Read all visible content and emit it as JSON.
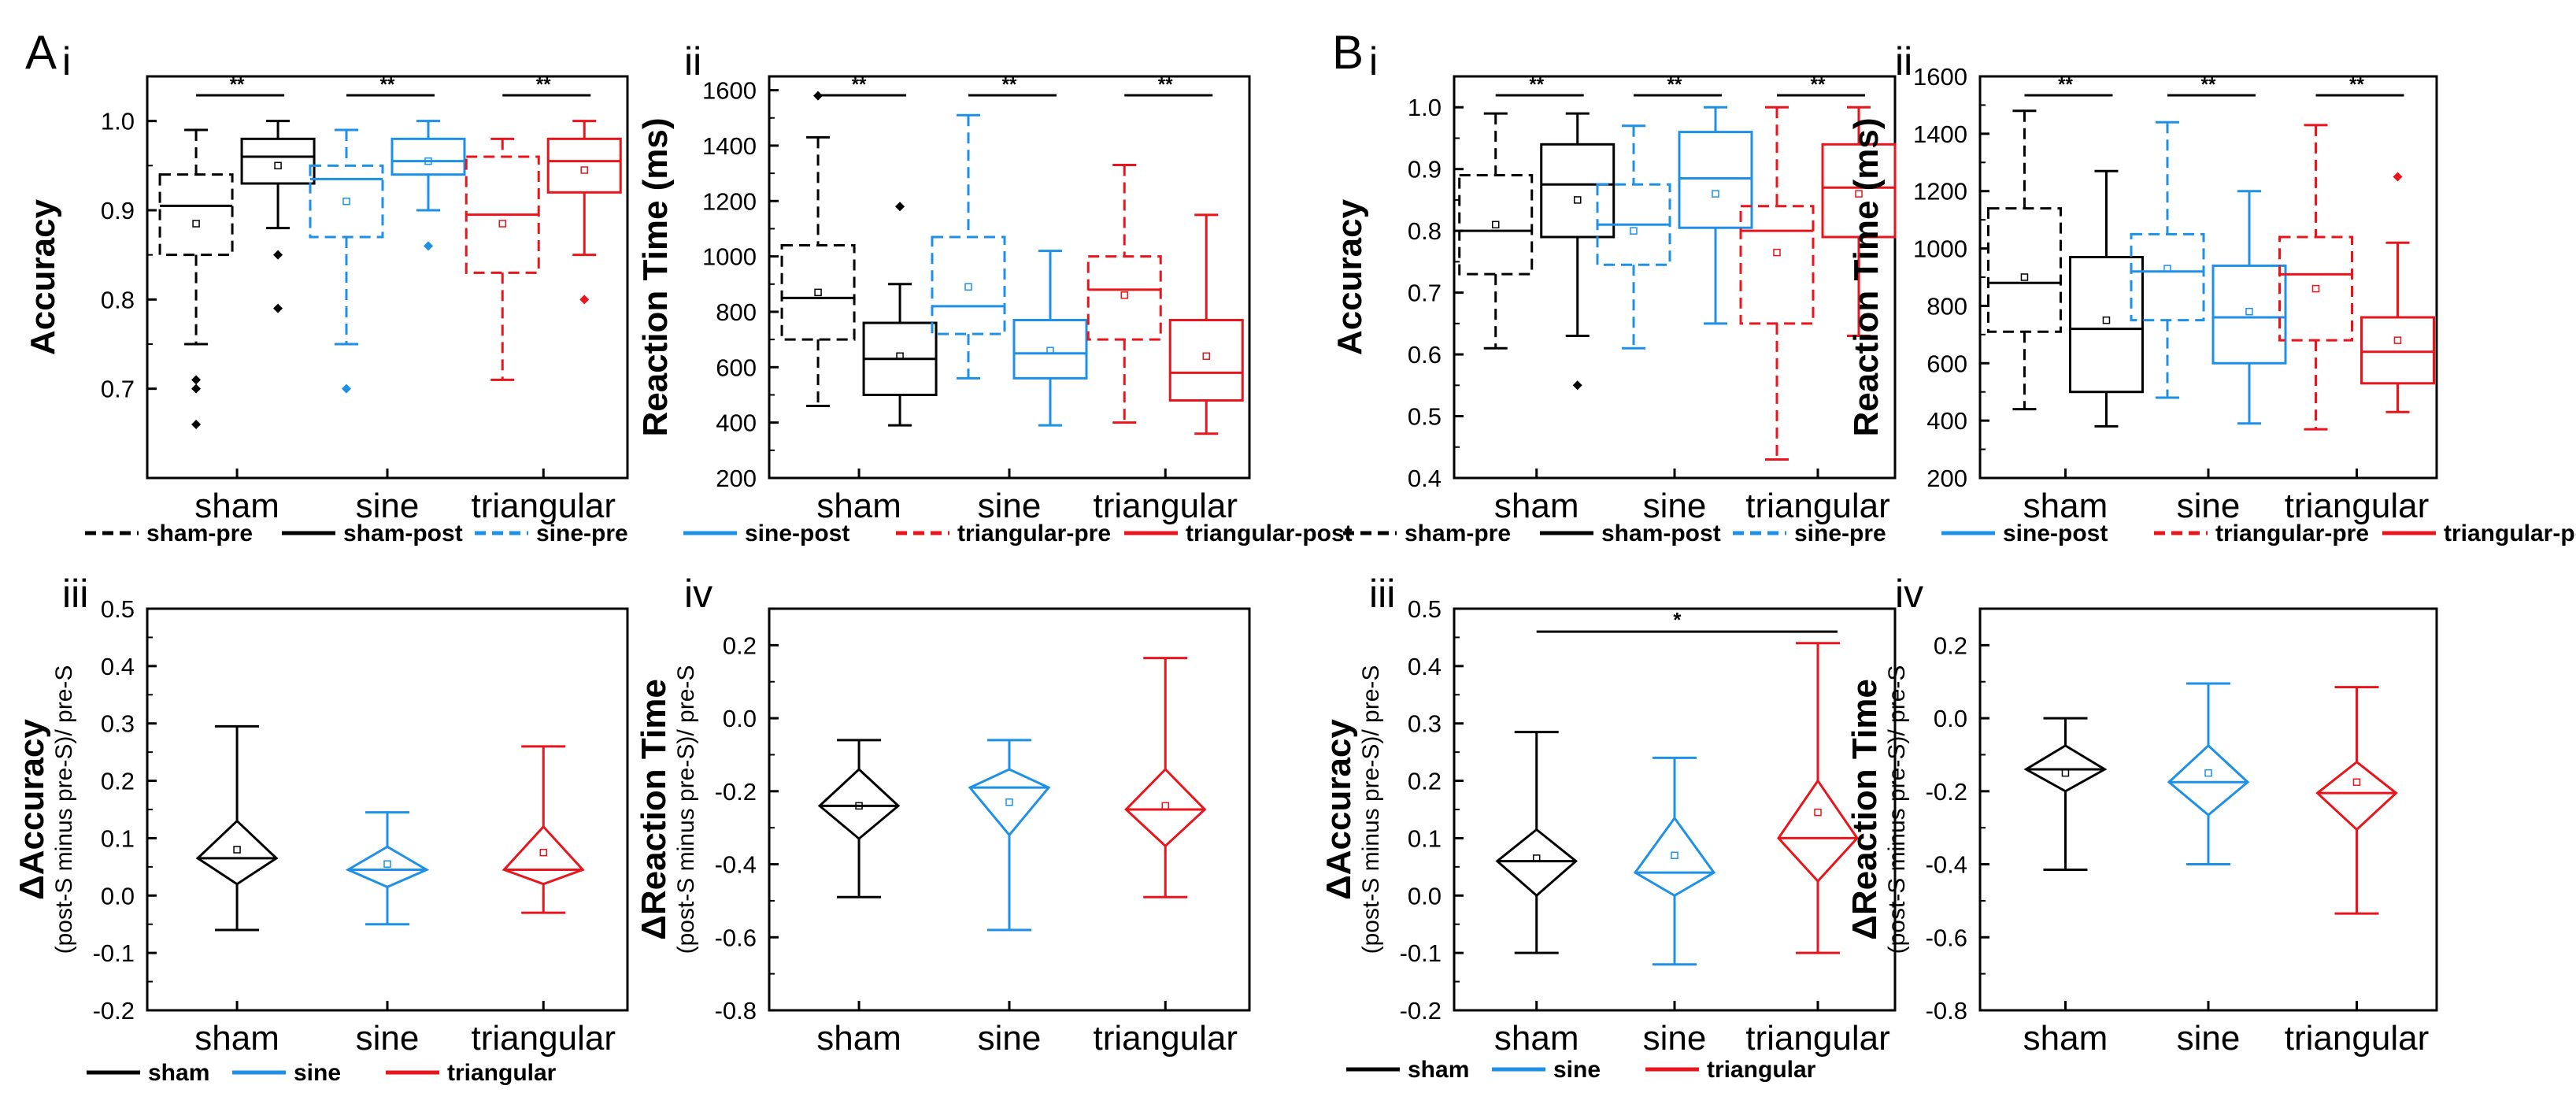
{
  "chart_data": {
    "type": "box",
    "panels": [
      {
        "id": "A",
        "letter": "A",
        "sub": "i",
        "title": "",
        "ylabel": "Accuracy",
        "ylim": [
          0.6,
          1.05
        ],
        "yticks": [
          "1.0",
          "0.9",
          "0.8",
          "0.7"
        ],
        "ytick_values": [
          1.0,
          0.9,
          0.8,
          0.7
        ],
        "categories": [
          "sham",
          "sine",
          "triangular"
        ],
        "groups": [
          {
            "pre": {
              "min": 0.75,
              "q1": 0.85,
              "median": 0.905,
              "q3": 0.94,
              "max": 0.99,
              "mean": 0.885,
              "outliers": [
                0.71,
                0.7,
                0.66
              ]
            },
            "post": {
              "min": 0.88,
              "q1": 0.93,
              "median": 0.96,
              "q3": 0.98,
              "max": 1.0,
              "mean": 0.95,
              "outliers": [
                0.85,
                0.79
              ]
            }
          },
          {
            "pre": {
              "min": 0.75,
              "q1": 0.87,
              "median": 0.935,
              "q3": 0.95,
              "max": 0.99,
              "mean": 0.91,
              "outliers": [
                0.7
              ]
            },
            "post": {
              "min": 0.9,
              "q1": 0.94,
              "median": 0.955,
              "q3": 0.98,
              "max": 1.0,
              "mean": 0.955,
              "outliers": [
                0.86
              ]
            }
          },
          {
            "pre": {
              "min": 0.71,
              "q1": 0.83,
              "median": 0.895,
              "q3": 0.96,
              "max": 0.98,
              "mean": 0.885,
              "outliers": []
            },
            "post": {
              "min": 0.85,
              "q1": 0.92,
              "median": 0.955,
              "q3": 0.98,
              "max": 1.0,
              "mean": 0.945,
              "outliers": [
                0.8
              ]
            }
          }
        ],
        "significance": [
          "**",
          "**",
          "**"
        ]
      },
      {
        "id": "B",
        "letter": "",
        "sub": "ii",
        "title": "",
        "ylabel": "Reaction Time (ms)",
        "ylim": [
          200,
          1650
        ],
        "yticks": [
          "1600",
          "1400",
          "1200",
          "1000",
          "800",
          "600",
          "400",
          "200"
        ],
        "ytick_values": [
          1600,
          1400,
          1200,
          1000,
          800,
          600,
          400,
          200
        ],
        "categories": [
          "sham",
          "sine",
          "triangular"
        ],
        "groups": [
          {
            "pre": {
              "min": 460,
              "q1": 700,
              "median": 850,
              "q3": 1040,
              "max": 1430,
              "mean": 870,
              "outliers": [
                1580
              ]
            },
            "post": {
              "min": 390,
              "q1": 500,
              "median": 630,
              "q3": 760,
              "max": 900,
              "mean": 640,
              "outliers": [
                1180
              ]
            }
          },
          {
            "pre": {
              "min": 560,
              "q1": 720,
              "median": 820,
              "q3": 1070,
              "max": 1510,
              "mean": 890,
              "outliers": []
            },
            "post": {
              "min": 390,
              "q1": 560,
              "median": 650,
              "q3": 770,
              "max": 1020,
              "mean": 660,
              "outliers": []
            }
          },
          {
            "pre": {
              "min": 400,
              "q1": 700,
              "median": 880,
              "q3": 1000,
              "max": 1330,
              "mean": 860,
              "outliers": []
            },
            "post": {
              "min": 360,
              "q1": 480,
              "median": 580,
              "q3": 770,
              "max": 1150,
              "mean": 640,
              "outliers": []
            }
          }
        ],
        "significance": [
          "**",
          "**",
          "**"
        ]
      },
      {
        "id": "C",
        "letter": "B",
        "sub": "i",
        "title": "",
        "ylabel": "Accuracy",
        "ylim": [
          0.4,
          1.05
        ],
        "yticks": [
          "1.0",
          "0.9",
          "0.8",
          "0.7",
          "0.6",
          "0.5",
          "0.4"
        ],
        "ytick_values": [
          1.0,
          0.9,
          0.8,
          0.7,
          0.6,
          0.5,
          0.4
        ],
        "categories": [
          "sham",
          "sine",
          "triangular"
        ],
        "groups": [
          {
            "pre": {
              "min": 0.61,
              "q1": 0.73,
              "median": 0.8,
              "q3": 0.89,
              "max": 0.99,
              "mean": 0.81,
              "outliers": []
            },
            "post": {
              "min": 0.63,
              "q1": 0.79,
              "median": 0.875,
              "q3": 0.94,
              "max": 0.99,
              "mean": 0.85,
              "outliers": [
                0.55
              ]
            }
          },
          {
            "pre": {
              "min": 0.61,
              "q1": 0.745,
              "median": 0.81,
              "q3": 0.875,
              "max": 0.97,
              "mean": 0.8,
              "outliers": []
            },
            "post": {
              "min": 0.65,
              "q1": 0.805,
              "median": 0.885,
              "q3": 0.96,
              "max": 1.0,
              "mean": 0.86,
              "outliers": []
            }
          },
          {
            "pre": {
              "min": 0.43,
              "q1": 0.65,
              "median": 0.8,
              "q3": 0.84,
              "max": 1.0,
              "mean": 0.765,
              "outliers": []
            },
            "post": {
              "min": 0.63,
              "q1": 0.79,
              "median": 0.87,
              "q3": 0.94,
              "max": 1.0,
              "mean": 0.86,
              "outliers": []
            }
          }
        ],
        "significance": [
          "**",
          "**",
          "**"
        ]
      },
      {
        "id": "D",
        "letter": "",
        "sub": "ii",
        "title": "",
        "ylabel": "Reaction Time (ms)",
        "ylim": [
          200,
          1600
        ],
        "yticks": [
          "1600",
          "1400",
          "1200",
          "1000",
          "800",
          "600",
          "400",
          "200"
        ],
        "ytick_values": [
          1600,
          1400,
          1200,
          1000,
          800,
          600,
          400,
          200
        ],
        "categories": [
          "sham",
          "sine",
          "triangular"
        ],
        "groups": [
          {
            "pre": {
              "min": 440,
              "q1": 710,
              "median": 880,
              "q3": 1140,
              "max": 1480,
              "mean": 900,
              "outliers": []
            },
            "post": {
              "min": 380,
              "q1": 500,
              "median": 720,
              "q3": 970,
              "max": 1270,
              "mean": 750,
              "outliers": []
            }
          },
          {
            "pre": {
              "min": 480,
              "q1": 750,
              "median": 920,
              "q3": 1050,
              "max": 1440,
              "mean": 930,
              "outliers": []
            },
            "post": {
              "min": 390,
              "q1": 600,
              "median": 760,
              "q3": 940,
              "max": 1200,
              "mean": 780,
              "outliers": []
            }
          },
          {
            "pre": {
              "min": 370,
              "q1": 680,
              "median": 910,
              "q3": 1040,
              "max": 1430,
              "mean": 860,
              "outliers": []
            },
            "post": {
              "min": 430,
              "q1": 530,
              "median": 640,
              "q3": 760,
              "max": 1020,
              "mean": 680,
              "outliers": [
                1250
              ]
            }
          }
        ],
        "significance": [
          "**",
          "**",
          "**"
        ]
      },
      {
        "id": "E",
        "letter": "",
        "sub": "iii",
        "ylabel": "ΔAccuracy",
        "ylabel2": "(post-S minus pre-S)/ pre-S",
        "ylim": [
          -0.2,
          0.5
        ],
        "yticks": [
          "0.5",
          "0.4",
          "0.3",
          "0.2",
          "0.1",
          "0.0",
          "-0.1",
          "-0.2"
        ],
        "ytick_values": [
          0.5,
          0.4,
          0.3,
          0.2,
          0.1,
          0.0,
          -0.1,
          -0.2
        ],
        "categories": [
          "sham",
          "sine",
          "triangular"
        ],
        "diamonds": [
          {
            "min": -0.06,
            "q1": 0.02,
            "median": 0.065,
            "q3": 0.13,
            "max": 0.295,
            "mean": 0.08
          },
          {
            "min": -0.05,
            "q1": 0.015,
            "median": 0.045,
            "q3": 0.085,
            "max": 0.145,
            "mean": 0.055
          },
          {
            "min": -0.03,
            "q1": 0.02,
            "median": 0.045,
            "q3": 0.12,
            "max": 0.26,
            "mean": 0.075
          }
        ],
        "significance": []
      },
      {
        "id": "F",
        "letter": "",
        "sub": "iv",
        "ylabel": "ΔReaction Time",
        "ylabel2": "(post-S minus pre-S)/ pre-S",
        "ylim": [
          -0.8,
          0.3
        ],
        "yticks": [
          "0.2",
          "0.0",
          "-0.2",
          "-0.4",
          "-0.6",
          "-0.8"
        ],
        "ytick_values": [
          0.2,
          0.0,
          -0.2,
          -0.4,
          -0.6,
          -0.8
        ],
        "categories": [
          "sham",
          "sine",
          "triangular"
        ],
        "diamonds": [
          {
            "min": -0.49,
            "q1": -0.33,
            "median": -0.24,
            "q3": -0.14,
            "max": -0.06,
            "mean": -0.24
          },
          {
            "min": -0.58,
            "q1": -0.32,
            "median": -0.19,
            "q3": -0.14,
            "max": -0.06,
            "mean": -0.23
          },
          {
            "min": -0.49,
            "q1": -0.35,
            "median": -0.25,
            "q3": -0.14,
            "max": 0.165,
            "mean": -0.24
          }
        ],
        "significance": []
      },
      {
        "id": "G",
        "letter": "",
        "sub": "iii",
        "ylabel": "ΔAccuracy",
        "ylabel2": "(post-S minus pre-S)/ pre-S",
        "ylim": [
          -0.2,
          0.5
        ],
        "yticks": [
          "0.5",
          "0.4",
          "0.3",
          "0.2",
          "0.1",
          "0.0",
          "-0.1",
          "-0.2"
        ],
        "ytick_values": [
          0.5,
          0.4,
          0.3,
          0.2,
          0.1,
          0.0,
          -0.1,
          -0.2
        ],
        "categories": [
          "sham",
          "sine",
          "triangular"
        ],
        "diamonds": [
          {
            "min": -0.1,
            "q1": 0.0,
            "median": 0.06,
            "q3": 0.115,
            "max": 0.285,
            "mean": 0.065
          },
          {
            "min": -0.12,
            "q1": 0.0,
            "median": 0.04,
            "q3": 0.135,
            "max": 0.24,
            "mean": 0.07
          },
          {
            "min": -0.1,
            "q1": 0.025,
            "median": 0.1,
            "q3": 0.2,
            "max": 0.44,
            "mean": 0.145
          }
        ],
        "significance": [
          "*"
        ]
      },
      {
        "id": "H",
        "letter": "",
        "sub": "iv",
        "ylabel": "ΔReaction Time",
        "ylabel2": "(post-S minus pre-S)/ pre-S",
        "ylim": [
          -0.8,
          0.3
        ],
        "yticks": [
          "0.2",
          "0.0",
          "-0.2",
          "-0.4",
          "-0.6",
          "-0.8"
        ],
        "ytick_values": [
          0.2,
          0.0,
          -0.2,
          -0.4,
          -0.6,
          -0.8
        ],
        "categories": [
          "sham",
          "sine",
          "triangular"
        ],
        "diamonds": [
          {
            "min": -0.415,
            "q1": -0.2,
            "median": -0.14,
            "q3": -0.075,
            "max": 0.0,
            "mean": -0.15
          },
          {
            "min": -0.4,
            "q1": -0.265,
            "median": -0.175,
            "q3": -0.075,
            "max": 0.095,
            "mean": -0.15
          },
          {
            "min": -0.535,
            "q1": -0.305,
            "median": -0.205,
            "q3": -0.12,
            "max": 0.085,
            "mean": -0.175
          }
        ],
        "significance": []
      }
    ],
    "legend_top": [
      "sham-pre",
      "sham-post",
      "sine-pre",
      "sine-post",
      "triangular-pre",
      "triangular-post"
    ],
    "legend_bottom": [
      "sham",
      "sine",
      "triangular"
    ]
  },
  "colors": {
    "sham": "#000000",
    "sine": "#1e90e6",
    "triangular": "#e8161c"
  }
}
